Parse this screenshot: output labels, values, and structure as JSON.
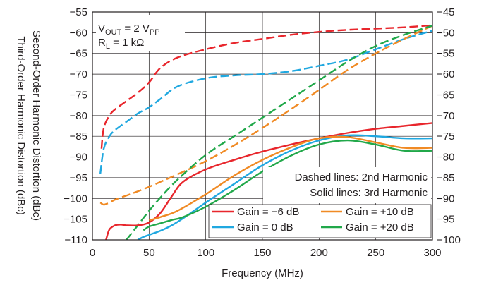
{
  "chart_data": {
    "type": "line",
    "xlabel": "Frequency (MHz)",
    "ylabel_left": "Second-Order Harmonic Distortion (dBc)",
    "ylabel_right": "Third-Order Harmonic Distortion (dBc)",
    "xlim": [
      0,
      300
    ],
    "ylim_left": [
      -110,
      -55
    ],
    "ylim_right": [
      -100,
      -45
    ],
    "x_ticks": [
      "0",
      "50",
      "100",
      "150",
      "200",
      "250",
      "300"
    ],
    "y_ticks_left": [
      "−55",
      "−60",
      "−65",
      "−70",
      "−75",
      "−80",
      "−85",
      "−90",
      "−95",
      "−100",
      "−105",
      "−110"
    ],
    "y_ticks_right": [
      "−45",
      "−50",
      "−55",
      "−60",
      "−65",
      "−70",
      "−75",
      "−80",
      "−85",
      "−90",
      "−95",
      "−100"
    ],
    "grid": true,
    "conditions": {
      "vout_main": "V",
      "vout_sub": "OUT",
      "vout_mid": " = 2 V",
      "vout_sub2": "PP",
      "rl_main": "R",
      "rl_sub": "L",
      "rl_mid": " = 1 kΩ"
    },
    "annotations": [
      "Dashed lines: 2nd Harmonic",
      "Solid lines: 3rd Harmonic"
    ],
    "legend": [
      {
        "label": "Gain = −6 dB",
        "color": "#e8262c"
      },
      {
        "label": "Gain = +10 dB",
        "color": "#f08a24"
      },
      {
        "label": "Gain = 0 dB",
        "color": "#20a8e0"
      },
      {
        "label": "Gain = +20 dB",
        "color": "#21a84a"
      }
    ],
    "series": [
      {
        "harmonic": "2nd",
        "axis": "left",
        "style": "dashed",
        "gain": "−6 dB",
        "color": "#e8262c",
        "x": [
          8,
          10,
          15,
          20,
          30,
          40,
          50,
          60,
          75,
          100,
          125,
          150,
          175,
          200,
          225,
          250,
          275,
          300
        ],
        "y": [
          -88,
          -83,
          -80,
          -78.5,
          -76.5,
          -74.5,
          -72,
          -68.5,
          -66,
          -64,
          -62.5,
          -61.5,
          -60.5,
          -59.8,
          -59.3,
          -59,
          -58.7,
          -58.2
        ]
      },
      {
        "harmonic": "2nd",
        "axis": "left",
        "style": "dashed",
        "gain": "0 dB",
        "color": "#20a8e0",
        "x": [
          7,
          10,
          15,
          20,
          30,
          40,
          50,
          60,
          75,
          100,
          125,
          150,
          175,
          200,
          225,
          250,
          275,
          300
        ],
        "y": [
          -94,
          -88,
          -85,
          -83.5,
          -81.5,
          -79.5,
          -78,
          -76,
          -73,
          -71,
          -70.3,
          -70,
          -69.3,
          -68,
          -66.5,
          -64,
          -61.5,
          -59.5
        ]
      },
      {
        "harmonic": "2nd",
        "axis": "left",
        "style": "dashed",
        "gain": "+10 dB",
        "color": "#f08a24",
        "x": [
          7,
          10,
          15,
          20,
          30,
          40,
          50,
          60,
          75,
          100,
          125,
          150,
          175,
          200,
          225,
          250,
          275,
          300
        ],
        "y": [
          -101,
          -101.5,
          -101,
          -100.3,
          -99.3,
          -98.3,
          -97.2,
          -96,
          -94.2,
          -91,
          -87.2,
          -83,
          -78.5,
          -73.8,
          -69,
          -65,
          -61.5,
          -58.3
        ]
      },
      {
        "harmonic": "2nd",
        "axis": "left",
        "style": "dashed",
        "gain": "+20 dB",
        "color": "#21a84a",
        "x": [
          30,
          40,
          50,
          60,
          75,
          100,
          125,
          150,
          175,
          200,
          225,
          250,
          275,
          300
        ],
        "y": [
          -110,
          -106.5,
          -103,
          -99.8,
          -95.5,
          -89.5,
          -85,
          -80.5,
          -76,
          -71.5,
          -67,
          -63.2,
          -60.5,
          -58.3
        ]
      },
      {
        "harmonic": "3rd",
        "axis": "right",
        "style": "solid",
        "gain": "−6 dB",
        "color": "#e8262c",
        "x": [
          12,
          15,
          20,
          25,
          30,
          40,
          50,
          60,
          70,
          80,
          100,
          125,
          150,
          175,
          200,
          225,
          250,
          275,
          300
        ],
        "y": [
          -100,
          -97.5,
          -96.5,
          -96.3,
          -96.5,
          -96.5,
          -95.8,
          -93.5,
          -89.5,
          -86,
          -83,
          -80.7,
          -78.7,
          -77,
          -75.5,
          -74.2,
          -73.2,
          -72.5,
          -71.8
        ]
      },
      {
        "harmonic": "3rd",
        "axis": "right",
        "style": "solid",
        "gain": "0 dB",
        "color": "#20a8e0",
        "x": [
          40,
          45,
          50,
          60,
          70,
          80,
          100,
          125,
          150,
          175,
          200,
          225,
          250,
          275,
          300
        ],
        "y": [
          -100,
          -99.3,
          -98.8,
          -97.8,
          -96.5,
          -94.8,
          -91,
          -86.5,
          -82,
          -78.5,
          -76,
          -74.8,
          -75,
          -75.5,
          -75.5
        ]
      },
      {
        "harmonic": "3rd",
        "axis": "right",
        "style": "solid",
        "gain": "+10 dB",
        "color": "#f08a24",
        "x": [
          50,
          60,
          75,
          100,
          125,
          150,
          175,
          200,
          225,
          250,
          275,
          300
        ],
        "y": [
          -95.3,
          -94.5,
          -93,
          -89,
          -84.5,
          -80.7,
          -77.7,
          -75.5,
          -75.2,
          -76.5,
          -77.8,
          -77.8
        ]
      },
      {
        "harmonic": "3rd",
        "axis": "right",
        "style": "solid",
        "gain": "+20 dB",
        "color": "#21a84a",
        "x": [
          45,
          50,
          60,
          70,
          80,
          100,
          125,
          150,
          175,
          200,
          225,
          250,
          275,
          300
        ],
        "y": [
          -97.7,
          -96.8,
          -96,
          -95.2,
          -94.5,
          -92,
          -88,
          -83.5,
          -79.7,
          -77,
          -76,
          -77,
          -78.5,
          -78.5
        ]
      }
    ]
  }
}
